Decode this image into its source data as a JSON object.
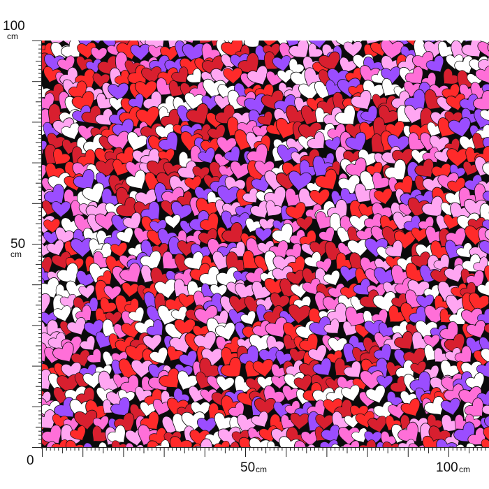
{
  "fabric": {
    "colors": [
      "#ff2a2a",
      "#ffffff",
      "#9b4dff",
      "#ffa6f2",
      "#d81f2f",
      "#ff6fd8"
    ],
    "icon": "heart-icon"
  },
  "vertical_ruler": {
    "label_top_value": "100",
    "label_top_unit": "cm",
    "label_mid_value": "50",
    "label_mid_unit": "cm",
    "label_zero": "0"
  },
  "horizontal_ruler": {
    "label_mid_value": "50",
    "label_mid_unit": "cm",
    "label_end_value": "100",
    "label_end_unit": "cm"
  }
}
